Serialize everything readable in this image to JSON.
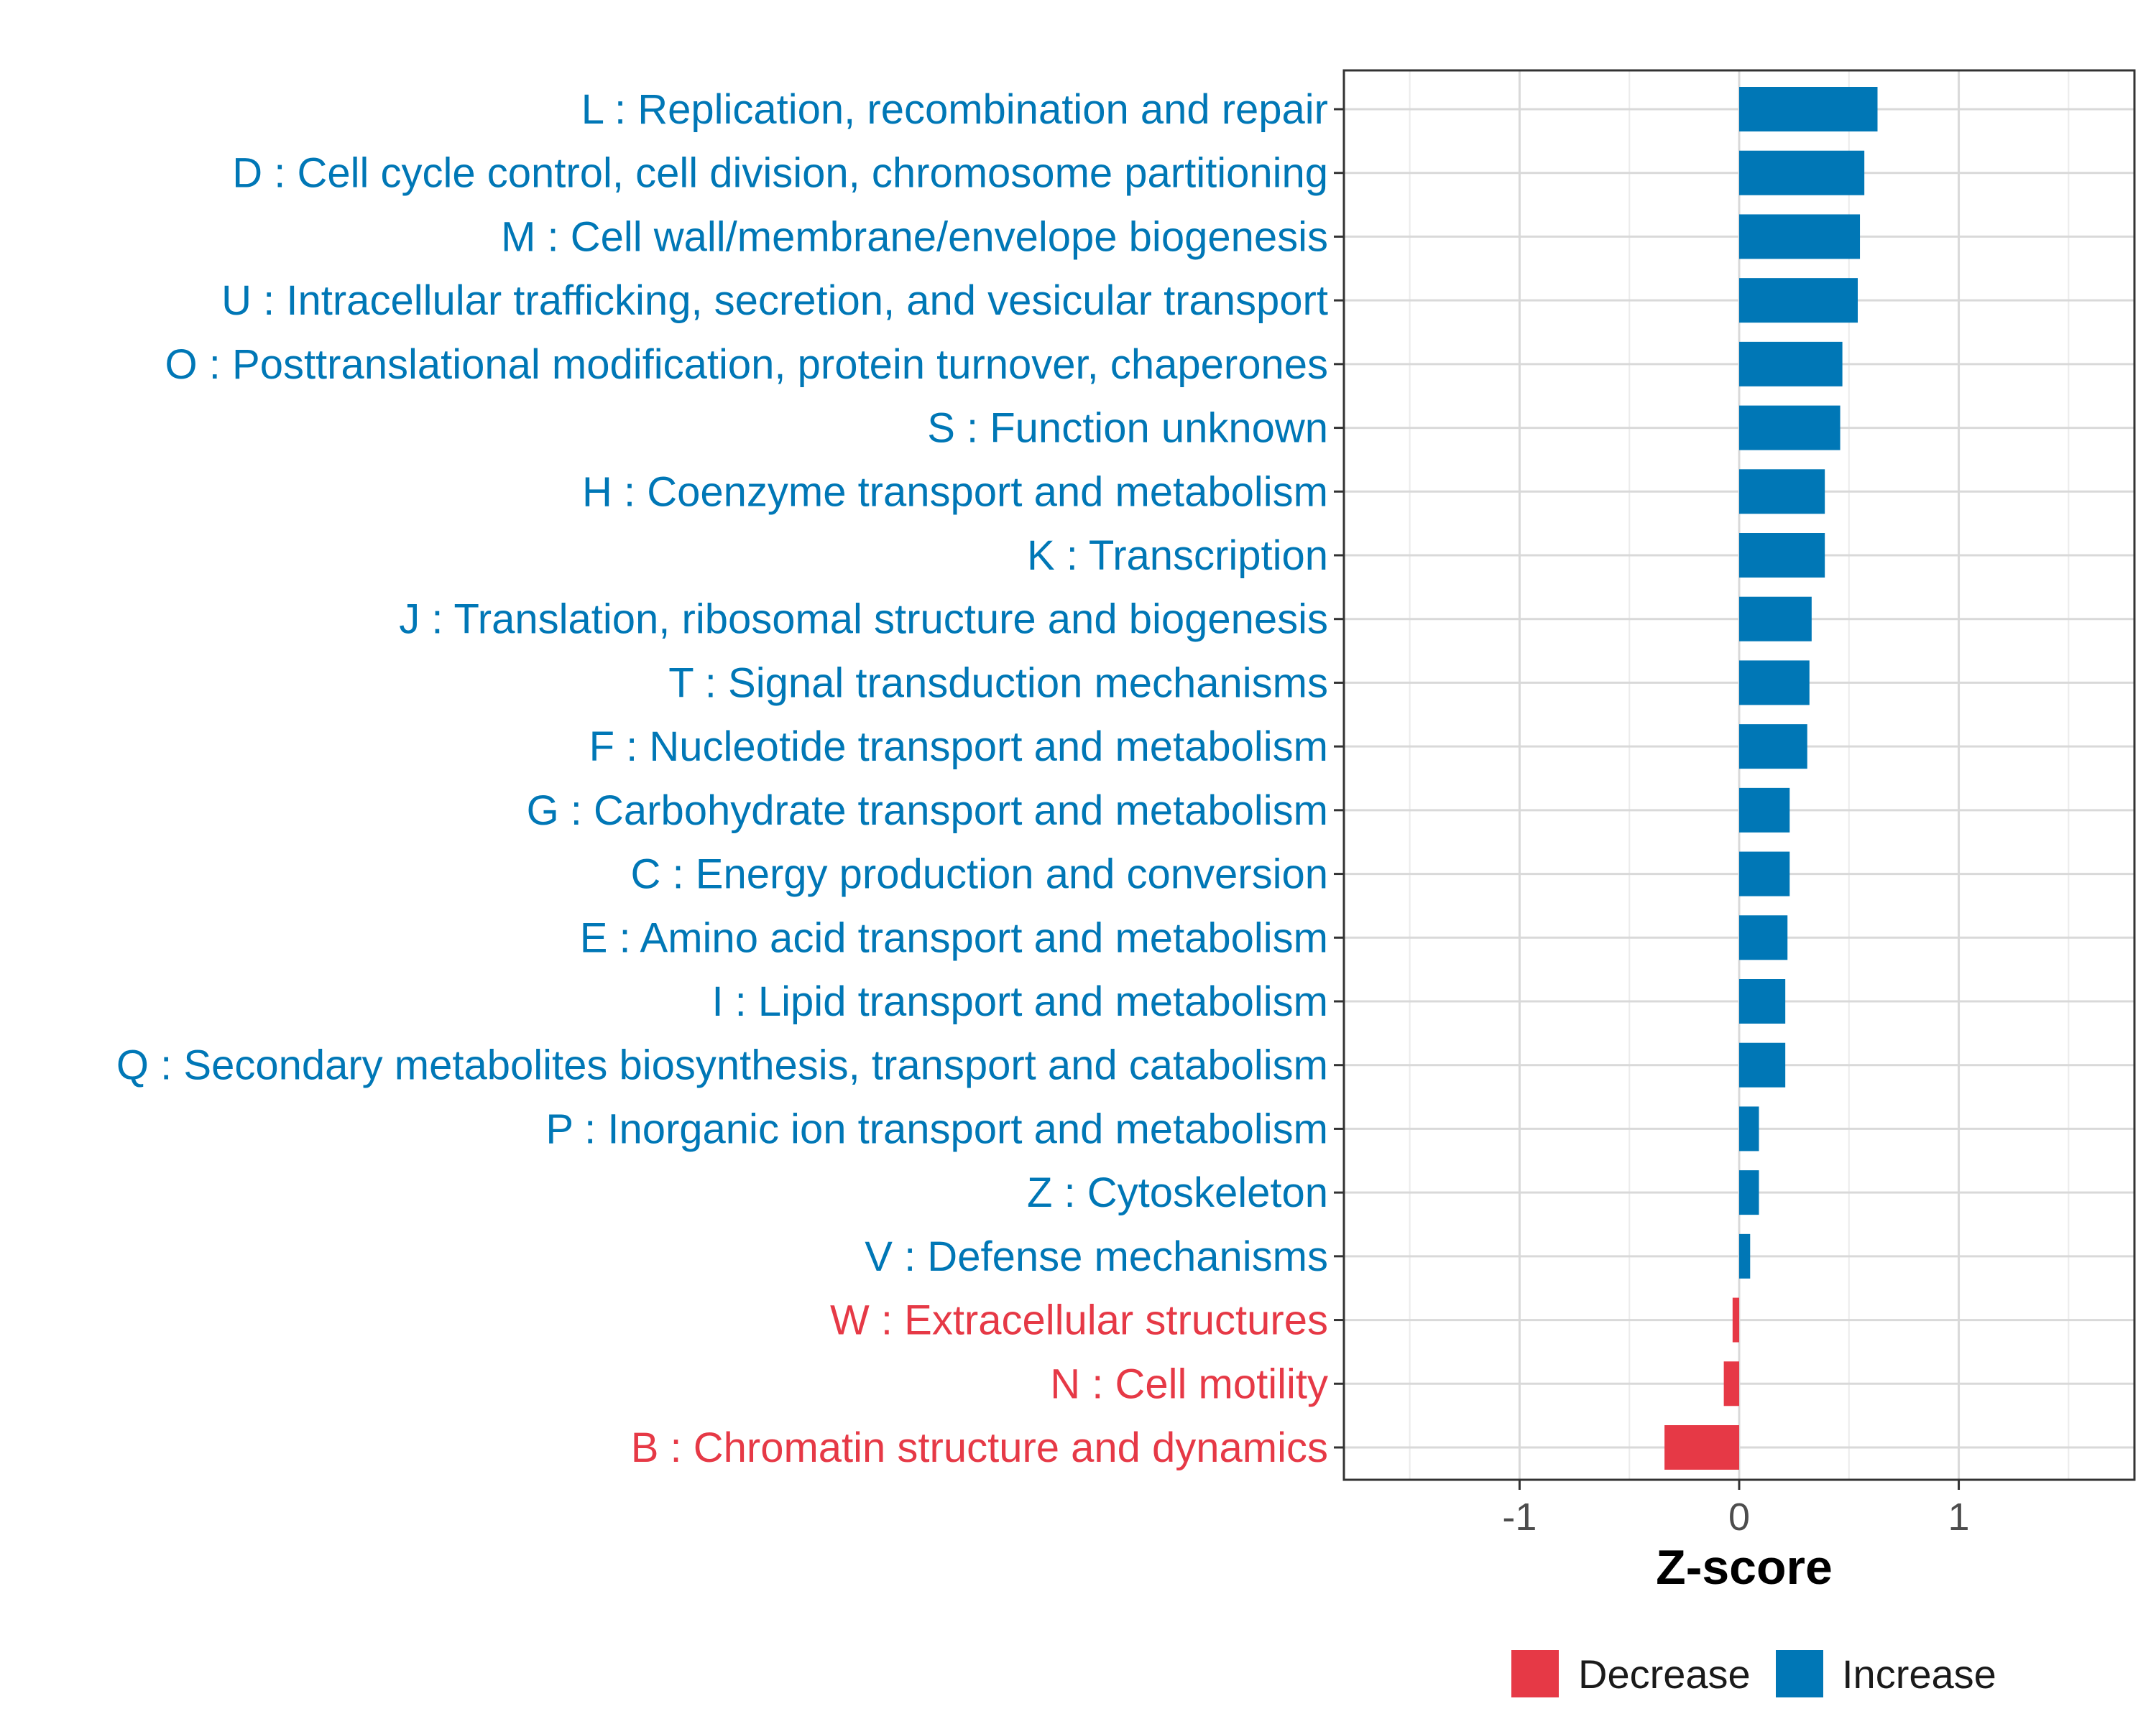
{
  "chart_data": {
    "type": "bar",
    "orientation": "horizontal",
    "title": "",
    "xlabel": "Z-score",
    "ylabel": "",
    "xlim": [
      -1.8,
      1.8
    ],
    "xticks": [
      -1,
      0,
      1
    ],
    "xtick_labels": [
      "-1",
      "0",
      "1"
    ],
    "grid": true,
    "legend_position": "bottom",
    "colors": {
      "Decrease": "#e63946",
      "Increase": "#0077b6"
    },
    "legend": [
      {
        "name": "Decrease",
        "color": "#e63946"
      },
      {
        "name": "Increase",
        "color": "#0077b6"
      }
    ],
    "categories": [
      "L : Replication, recombination and repair",
      "D : Cell cycle control, cell division, chromosome partitioning",
      "M : Cell wall/membrane/envelope biogenesis",
      "U : Intracellular trafficking, secretion, and vesicular transport",
      "O : Posttranslational modification, protein turnover, chaperones",
      "S : Function unknown",
      "H : Coenzyme transport and metabolism",
      "K : Transcription",
      "J : Translation, ribosomal structure and biogenesis",
      "T : Signal transduction mechanisms",
      "F : Nucleotide transport and metabolism",
      "G : Carbohydrate transport and metabolism",
      "C : Energy production and conversion",
      "E : Amino acid transport and metabolism",
      "I : Lipid transport and metabolism",
      "Q : Secondary metabolites biosynthesis, transport and catabolism",
      "P : Inorganic ion transport and metabolism",
      "Z : Cytoskeleton",
      "V : Defense mechanisms",
      "W : Extracellular structures",
      "N : Cell motility",
      "B : Chromatin structure and dynamics"
    ],
    "values": [
      0.63,
      0.57,
      0.55,
      0.54,
      0.47,
      0.46,
      0.39,
      0.39,
      0.33,
      0.32,
      0.31,
      0.23,
      0.23,
      0.22,
      0.21,
      0.21,
      0.09,
      0.09,
      0.05,
      -0.03,
      -0.07,
      -0.34
    ],
    "direction": [
      "Increase",
      "Increase",
      "Increase",
      "Increase",
      "Increase",
      "Increase",
      "Increase",
      "Increase",
      "Increase",
      "Increase",
      "Increase",
      "Increase",
      "Increase",
      "Increase",
      "Increase",
      "Increase",
      "Increase",
      "Increase",
      "Increase",
      "Decrease",
      "Decrease",
      "Decrease"
    ]
  }
}
